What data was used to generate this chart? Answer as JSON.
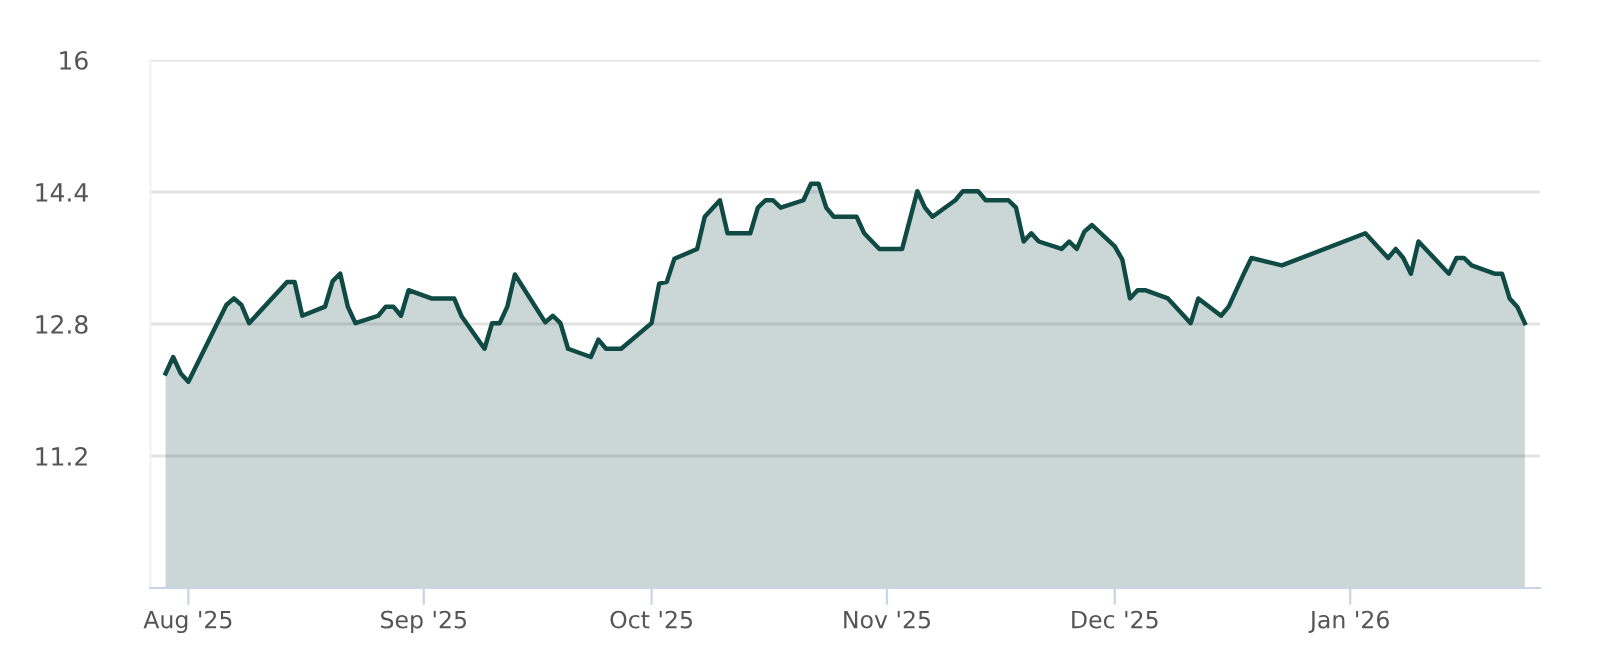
{
  "chart_data": {
    "type": "area",
    "x": [
      "2025-07-29",
      "2025-07-30",
      "2025-07-31",
      "2025-08-01",
      "2025-08-06",
      "2025-08-07",
      "2025-08-08",
      "2025-08-09",
      "2025-08-14",
      "2025-08-15",
      "2025-08-16",
      "2025-08-19",
      "2025-08-20",
      "2025-08-21",
      "2025-08-22",
      "2025-08-23",
      "2025-08-26",
      "2025-08-27",
      "2025-08-28",
      "2025-08-29",
      "2025-08-30",
      "2025-09-02",
      "2025-09-05",
      "2025-09-06",
      "2025-09-09",
      "2025-09-10",
      "2025-09-11",
      "2025-09-12",
      "2025-09-13",
      "2025-09-17",
      "2025-09-18",
      "2025-09-19",
      "2025-09-20",
      "2025-09-23",
      "2025-09-24",
      "2025-09-25",
      "2025-09-27",
      "2025-10-01",
      "2025-10-02",
      "2025-10-03",
      "2025-10-04",
      "2025-10-07",
      "2025-10-08",
      "2025-10-10",
      "2025-10-11",
      "2025-10-14",
      "2025-10-15",
      "2025-10-16",
      "2025-10-17",
      "2025-10-18",
      "2025-10-21",
      "2025-10-22",
      "2025-10-23",
      "2025-10-24",
      "2025-10-25",
      "2025-10-28",
      "2025-10-29",
      "2025-10-31",
      "2025-11-03",
      "2025-11-05",
      "2025-11-06",
      "2025-11-07",
      "2025-11-10",
      "2025-11-11",
      "2025-11-13",
      "2025-11-14",
      "2025-11-17",
      "2025-11-18",
      "2025-11-19",
      "2025-11-20",
      "2025-11-21",
      "2025-11-24",
      "2025-11-25",
      "2025-11-26",
      "2025-11-27",
      "2025-11-28",
      "2025-12-01",
      "2025-12-02",
      "2025-12-03",
      "2025-12-04",
      "2025-12-05",
      "2025-12-08",
      "2025-12-11",
      "2025-12-12",
      "2025-12-15",
      "2025-12-16",
      "2025-12-18",
      "2025-12-19",
      "2025-12-23",
      "2026-01-03",
      "2026-01-06",
      "2026-01-07",
      "2026-01-08",
      "2026-01-09",
      "2026-01-10",
      "2026-01-14",
      "2026-01-15",
      "2026-01-16",
      "2026-01-17",
      "2026-01-20",
      "2026-01-21",
      "2026-01-22",
      "2026-01-23",
      "2026-01-24"
    ],
    "series": [
      {
        "color": "#0f4a44",
        "values": [
          12.2,
          12.4,
          12.2,
          12.1,
          13.03,
          13.11,
          13.03,
          12.81,
          13.31,
          13.31,
          12.9,
          13.01,
          13.32,
          13.41,
          13.01,
          12.81,
          12.9,
          13.01,
          13.01,
          12.9,
          13.21,
          13.11,
          13.11,
          12.89,
          12.5,
          12.81,
          12.81,
          13.01,
          13.4,
          12.82,
          12.9,
          12.81,
          12.5,
          12.4,
          12.61,
          12.5,
          12.5,
          12.81,
          13.29,
          13.31,
          13.59,
          13.71,
          14.1,
          14.3,
          13.9,
          13.9,
          14.21,
          14.3,
          14.3,
          14.21,
          14.3,
          14.5,
          14.5,
          14.21,
          14.1,
          14.1,
          13.9,
          13.71,
          13.71,
          14.41,
          14.21,
          14.1,
          14.3,
          14.41,
          14.41,
          14.3,
          14.3,
          14.21,
          13.8,
          13.9,
          13.8,
          13.71,
          13.8,
          13.71,
          13.92,
          14.0,
          13.74,
          13.58,
          13.11,
          13.21,
          13.21,
          13.11,
          12.81,
          13.11,
          12.9,
          13.01,
          13.41,
          13.6,
          13.51,
          13.9,
          13.6,
          13.71,
          13.6,
          13.41,
          13.8,
          13.41,
          13.6,
          13.6,
          13.51,
          13.41,
          13.41,
          13.11,
          13.01,
          12.81
        ]
      }
    ],
    "xlim": [
      "2025-07-27",
      "2026-01-26"
    ],
    "xticks": [
      {
        "value": "2025-08-01",
        "label": "Aug '25"
      },
      {
        "value": "2025-09-01",
        "label": "Sep '25"
      },
      {
        "value": "2025-10-01",
        "label": "Oct '25"
      },
      {
        "value": "2025-11-01",
        "label": "Nov '25"
      },
      {
        "value": "2025-12-01",
        "label": "Dec '25"
      },
      {
        "value": "2026-01-01",
        "label": "Jan '26"
      }
    ],
    "ylim": [
      9.6,
      16
    ],
    "yticks": [
      11.2,
      12.8,
      14.4,
      16
    ],
    "grid": "y"
  }
}
